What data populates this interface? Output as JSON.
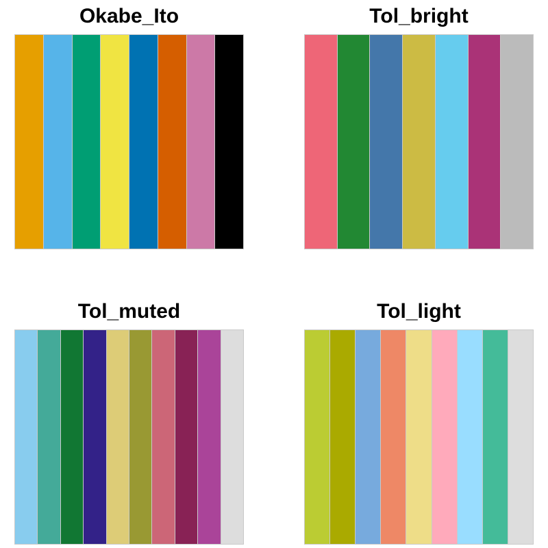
{
  "chart_data": [
    {
      "type": "palette",
      "title": "Okabe_Ito",
      "colors": [
        "#E69F00",
        "#56B4E9",
        "#009E73",
        "#F0E442",
        "#0072B2",
        "#D55E00",
        "#CC79A7",
        "#000000"
      ]
    },
    {
      "type": "palette",
      "title": "Tol_bright",
      "colors": [
        "#EE6677",
        "#228833",
        "#4477AA",
        "#CCBB44",
        "#66CCEE",
        "#AA3377",
        "#BBBBBB"
      ]
    },
    {
      "type": "palette",
      "title": "Tol_muted",
      "colors": [
        "#88CCEE",
        "#44AA99",
        "#117733",
        "#332288",
        "#DDCC77",
        "#999933",
        "#CC6677",
        "#882255",
        "#AA4499",
        "#DDDDDD"
      ]
    },
    {
      "type": "palette",
      "title": "Tol_light",
      "colors": [
        "#BBCC33",
        "#AAAA00",
        "#77AADD",
        "#EE8866",
        "#EEDD88",
        "#FFAABB",
        "#99DDFF",
        "#44BB99",
        "#DDDDDD"
      ]
    }
  ]
}
